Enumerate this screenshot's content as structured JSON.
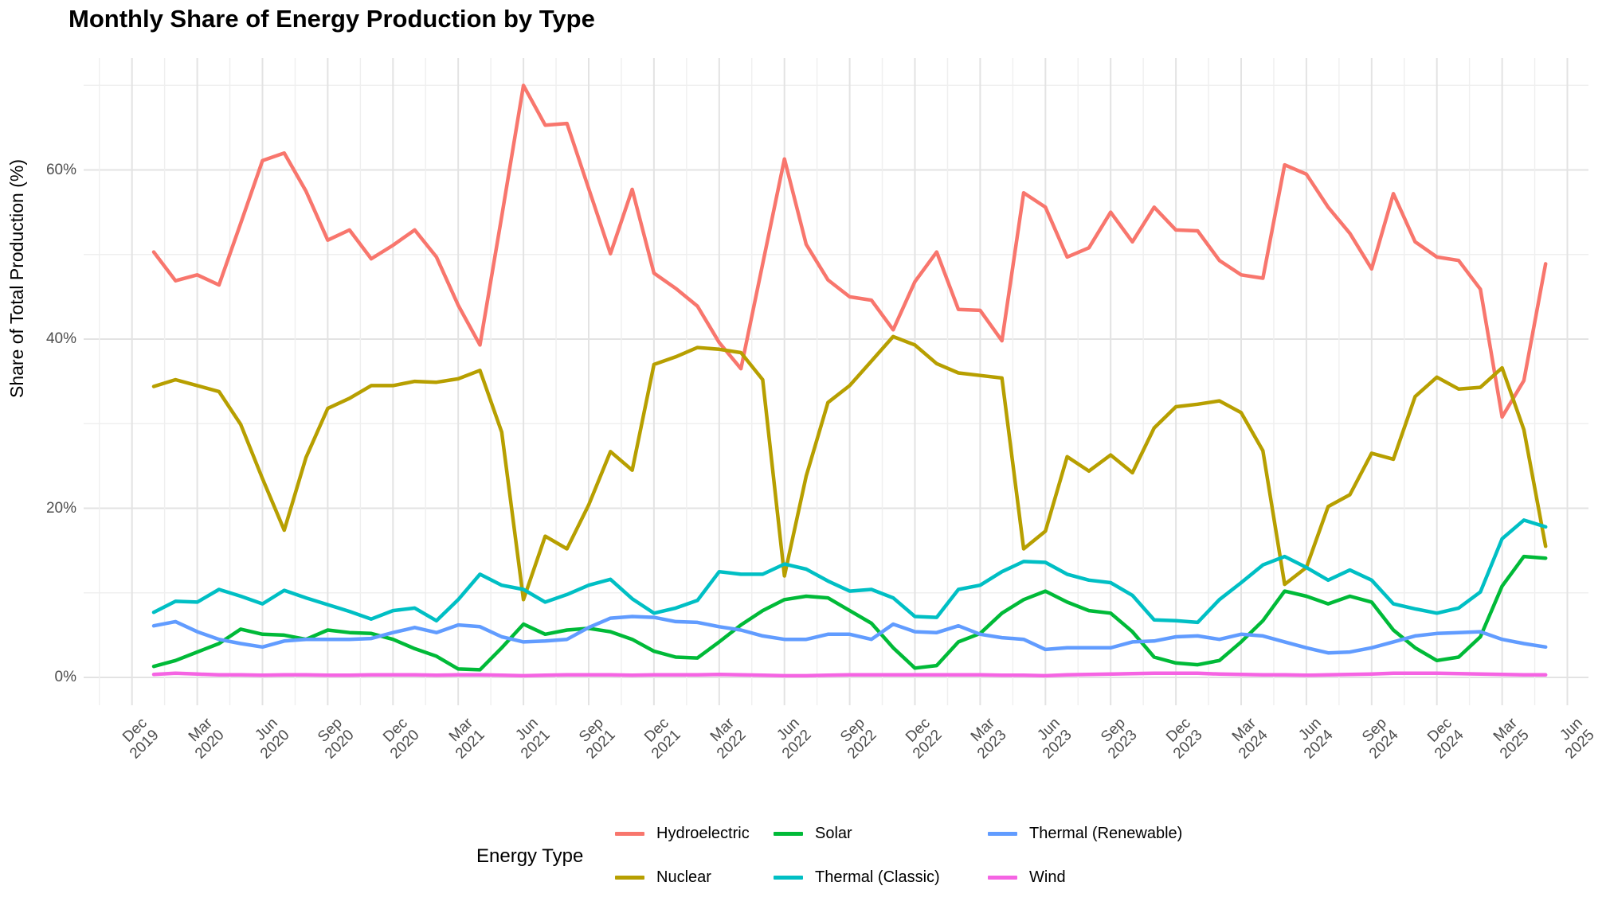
{
  "chart": {
    "title": "Monthly Share of Energy Production by Type",
    "y_axis": {
      "title": "Share of Total Production (%)",
      "tick_values": [
        0,
        20,
        40,
        60
      ],
      "tick_labels": [
        "0%",
        "20%",
        "40%",
        "60%"
      ],
      "minor_tick_values": [
        10,
        30,
        50,
        70
      ]
    },
    "x_axis": {
      "tick_labels": [
        [
          "Dec",
          "2019"
        ],
        [
          "Mar",
          "2020"
        ],
        [
          "Jun",
          "2020"
        ],
        [
          "Sep",
          "2020"
        ],
        [
          "Dec",
          "2020"
        ],
        [
          "Mar",
          "2021"
        ],
        [
          "Jun",
          "2021"
        ],
        [
          "Sep",
          "2021"
        ],
        [
          "Dec",
          "2021"
        ],
        [
          "Mar",
          "2022"
        ],
        [
          "Jun",
          "2022"
        ],
        [
          "Sep",
          "2022"
        ],
        [
          "Dec",
          "2022"
        ],
        [
          "Mar",
          "2023"
        ],
        [
          "Jun",
          "2023"
        ],
        [
          "Sep",
          "2023"
        ],
        [
          "Dec",
          "2023"
        ],
        [
          "Mar",
          "2024"
        ],
        [
          "Jun",
          "2024"
        ],
        [
          "Sep",
          "2024"
        ],
        [
          "Dec",
          "2024"
        ],
        [
          "Mar",
          "2025"
        ],
        [
          "Jun",
          "2025"
        ]
      ]
    },
    "legend": {
      "title": "Energy Type",
      "entries": [
        {
          "label": "Hydroelectric",
          "color": "#F8766D",
          "col": 0,
          "row": 0
        },
        {
          "label": "Nuclear",
          "color": "#B79F00",
          "col": 0,
          "row": 1
        },
        {
          "label": "Solar",
          "color": "#00BA38",
          "col": 1,
          "row": 0
        },
        {
          "label": "Thermal (Classic)",
          "color": "#00BFC4",
          "col": 1,
          "row": 1
        },
        {
          "label": "Thermal (Renewable)",
          "color": "#619CFF",
          "col": 2,
          "row": 0
        },
        {
          "label": "Wind",
          "color": "#F564E3",
          "col": 2,
          "row": 1
        }
      ]
    }
  },
  "chart_data": {
    "type": "line",
    "title": "Monthly Share of Energy Production by Type",
    "xlabel": "",
    "ylabel": "Share of Total Production (%)",
    "ylim": [
      0,
      73
    ],
    "grid": true,
    "legend_position": "bottom",
    "x_start_month": "2020-01",
    "x_end_month": "2025-05",
    "x_frequency": "monthly",
    "series": [
      {
        "name": "Hydroelectric",
        "color": "#F8766D",
        "values": [
          50.3,
          46.9,
          47.6,
          46.4,
          53.7,
          61.1,
          62.0,
          57.5,
          51.7,
          52.9,
          49.5,
          51.1,
          52.9,
          49.7,
          44.0,
          39.3,
          54.5,
          70.0,
          65.3,
          65.5,
          57.8,
          50.1,
          57.7,
          47.8,
          46.0,
          43.9,
          39.6,
          36.5,
          48.9,
          61.3,
          51.2,
          47.0,
          45.0,
          44.6,
          41.1,
          46.8,
          50.3,
          43.5,
          43.4,
          39.8,
          57.3,
          55.6,
          49.7,
          50.8,
          55.0,
          51.5,
          55.6,
          52.9,
          52.8,
          49.3,
          47.6,
          47.2,
          60.6,
          59.5,
          55.6,
          52.5,
          48.3,
          57.2,
          51.5,
          49.7,
          49.3,
          45.9,
          30.8,
          35.1,
          48.9
        ]
      },
      {
        "name": "Nuclear",
        "color": "#B79F00",
        "values": [
          34.4,
          35.2,
          34.5,
          33.8,
          29.9,
          23.5,
          17.4,
          26.0,
          31.8,
          33.0,
          34.5,
          34.5,
          35.0,
          34.9,
          35.3,
          36.3,
          29.0,
          9.2,
          16.7,
          15.2,
          20.4,
          26.7,
          24.5,
          37.0,
          37.9,
          39.0,
          38.8,
          38.4,
          35.2,
          12.0,
          23.8,
          32.5,
          34.5,
          37.4,
          40.3,
          39.3,
          37.1,
          36.0,
          35.7,
          35.4,
          15.2,
          17.3,
          26.1,
          24.4,
          26.3,
          24.2,
          29.5,
          32.0,
          32.3,
          32.7,
          31.3,
          26.8,
          11.0,
          13.0,
          20.2,
          21.6,
          26.5,
          25.8,
          33.2,
          35.5,
          34.1,
          34.3,
          36.6,
          29.3,
          15.5
        ]
      },
      {
        "name": "Solar",
        "color": "#00BA38",
        "values": [
          1.3,
          2.0,
          3.0,
          4.0,
          5.7,
          5.1,
          5.0,
          4.5,
          5.6,
          5.3,
          5.2,
          4.5,
          3.4,
          2.5,
          1.0,
          0.9,
          3.5,
          6.3,
          5.1,
          5.6,
          5.8,
          5.4,
          4.5,
          3.1,
          2.4,
          2.3,
          4.2,
          6.2,
          7.9,
          9.2,
          9.6,
          9.4,
          7.9,
          6.4,
          3.5,
          1.1,
          1.4,
          4.2,
          5.2,
          7.6,
          9.2,
          10.2,
          8.9,
          7.9,
          7.6,
          5.4,
          2.4,
          1.7,
          1.5,
          2.0,
          4.2,
          6.7,
          10.2,
          9.6,
          8.7,
          9.6,
          8.9,
          5.6,
          3.5,
          2.0,
          2.4,
          4.8,
          10.8,
          14.3,
          14.1
        ]
      },
      {
        "name": "Thermal (Classic)",
        "color": "#00BFC4",
        "values": [
          7.7,
          9.0,
          8.9,
          10.4,
          9.6,
          8.7,
          10.3,
          9.4,
          8.6,
          7.8,
          6.9,
          7.9,
          8.2,
          6.7,
          9.2,
          12.2,
          10.9,
          10.4,
          8.9,
          9.8,
          10.9,
          11.6,
          9.3,
          7.6,
          8.2,
          9.1,
          12.5,
          12.2,
          12.2,
          13.4,
          12.8,
          11.4,
          10.2,
          10.4,
          9.4,
          7.2,
          7.1,
          10.4,
          10.9,
          12.5,
          13.7,
          13.6,
          12.2,
          11.5,
          11.2,
          9.7,
          6.8,
          6.7,
          6.5,
          9.2,
          11.2,
          13.3,
          14.3,
          13.0,
          11.5,
          12.7,
          11.5,
          8.7,
          8.1,
          7.6,
          8.2,
          10.1,
          16.4,
          18.6,
          17.8
        ]
      },
      {
        "name": "Thermal (Renewable)",
        "color": "#619CFF",
        "values": [
          6.1,
          6.6,
          5.4,
          4.5,
          4.0,
          3.6,
          4.3,
          4.5,
          4.5,
          4.5,
          4.6,
          5.3,
          5.9,
          5.3,
          6.2,
          6.0,
          4.8,
          4.2,
          4.3,
          4.5,
          5.9,
          7.0,
          7.2,
          7.1,
          6.6,
          6.5,
          6.0,
          5.6,
          4.9,
          4.5,
          4.5,
          5.1,
          5.1,
          4.5,
          6.3,
          5.4,
          5.3,
          6.1,
          5.1,
          4.7,
          4.5,
          3.3,
          3.5,
          3.5,
          3.5,
          4.2,
          4.3,
          4.8,
          4.9,
          4.5,
          5.1,
          4.9,
          4.2,
          3.5,
          2.9,
          3.0,
          3.5,
          4.2,
          4.9,
          5.2,
          5.3,
          5.4,
          4.5,
          4.0,
          3.6
        ]
      },
      {
        "name": "Wind",
        "color": "#F564E3",
        "values": [
          0.35,
          0.5,
          0.4,
          0.3,
          0.3,
          0.25,
          0.3,
          0.3,
          0.25,
          0.25,
          0.3,
          0.3,
          0.3,
          0.25,
          0.3,
          0.3,
          0.25,
          0.2,
          0.25,
          0.3,
          0.3,
          0.3,
          0.25,
          0.3,
          0.3,
          0.3,
          0.35,
          0.3,
          0.25,
          0.2,
          0.2,
          0.25,
          0.3,
          0.3,
          0.3,
          0.3,
          0.3,
          0.3,
          0.3,
          0.25,
          0.25,
          0.2,
          0.3,
          0.35,
          0.4,
          0.45,
          0.5,
          0.5,
          0.5,
          0.4,
          0.35,
          0.3,
          0.3,
          0.25,
          0.3,
          0.35,
          0.4,
          0.5,
          0.5,
          0.5,
          0.45,
          0.4,
          0.35,
          0.3,
          0.3
        ]
      }
    ]
  }
}
